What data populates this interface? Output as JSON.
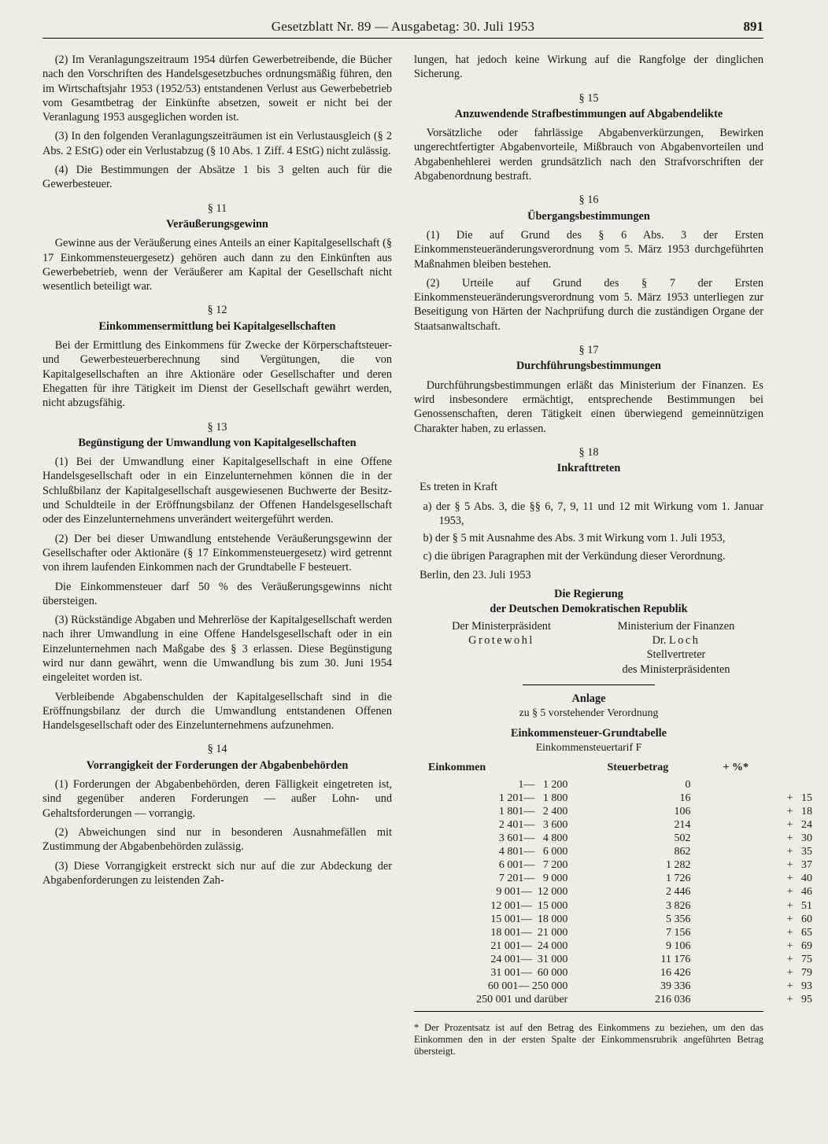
{
  "header": {
    "center": "Gesetzblatt Nr. 89 — Ausgabetag: 30. Juli 1953",
    "page": "891"
  },
  "left": {
    "p1": "(2) Im Veranlagungszeitraum 1954 dürfen Gewerbetreibende, die Bücher nach den Vorschriften des Handelsgesetzbuches ordnungsmäßig führen, den im Wirtschaftsjahr 1953 (1952/53) entstandenen Verlust aus Gewerbebetrieb vom Gesamtbetrag der Einkünfte absetzen, soweit er nicht bei der Veranlagung 1953 ausgeglichen worden ist.",
    "p2": "(3) In den folgenden Veranlagungszeiträumen ist ein Verlustausgleich (§ 2 Abs. 2 EStG) oder ein Verlustabzug (§ 10 Abs. 1 Ziff. 4 EStG) nicht zulässig.",
    "p3": "(4) Die Bestimmungen der Absätze 1 bis 3 gelten auch für die Gewerbesteuer.",
    "s11_num": "§ 11",
    "s11_title": "Veräußerungsgewinn",
    "s11_body": "Gewinne aus der Veräußerung eines Anteils an einer Kapitalgesellschaft (§ 17 Einkommensteuergesetz) gehören auch dann zu den Einkünften aus Gewerbebetrieb, wenn der Veräußerer am Kapital der Gesellschaft nicht wesentlich beteiligt war.",
    "s12_num": "§ 12",
    "s12_title": "Einkommensermittlung bei Kapitalgesellschaften",
    "s12_body": "Bei der Ermittlung des Einkommens für Zwecke der Körperschaftsteuer- und Gewerbesteuerberechnung sind Vergütungen, die von Kapitalgesellschaften an ihre Aktionäre oder Gesellschafter und deren Ehegatten für ihre Tätigkeit im Dienst der Gesellschaft gewährt werden, nicht abzugsfähig.",
    "s13_num": "§ 13",
    "s13_title": "Begünstigung der Umwandlung von Kapitalgesellschaften",
    "s13_p1": "(1) Bei der Umwandlung einer Kapitalgesellschaft in eine Offene Handelsgesellschaft oder in ein Einzelunternehmen können die in der Schlußbilanz der Kapitalgesellschaft ausgewiesenen Buchwerte der Besitz- und Schuldteile in der Eröffnungsbilanz der Offenen Handelsgesellschaft oder des Einzelunternehmens unverändert weitergeführt werden.",
    "s13_p2": "(2) Der bei dieser Umwandlung entstehende Veräußerungsgewinn der Gesellschafter oder Aktionäre (§ 17 Einkommensteuergesetz) wird getrennt von ihrem laufenden Einkommen nach der Grundtabelle F besteuert.",
    "s13_p3": "Die Einkommensteuer darf 50 % des Veräußerungsgewinns nicht übersteigen.",
    "s13_p4": "(3) Rückständige Abgaben und Mehrerlöse der Kapitalgesellschaft werden nach ihrer Umwandlung in eine Offene Handelsgesellschaft oder in ein Einzelunternehmen nach Maßgabe des § 3 erlassen. Diese Begünstigung wird nur dann gewährt, wenn die Umwandlung bis zum 30. Juni 1954 eingeleitet worden ist.",
    "s13_p5": "Verbleibende Abgabenschulden der Kapitalgesellschaft sind in die Eröffnungsbilanz der durch die Umwandlung entstandenen Offenen Handelsgesellschaft oder des Einzelunternehmens aufzunehmen.",
    "s14_num": "§ 14",
    "s14_title": "Vorrangigkeit der Forderungen der Abgabenbehörden",
    "s14_p1": "(1) Forderungen der Abgabenbehörden, deren Fälligkeit eingetreten ist, sind gegenüber anderen Forderungen — außer Lohn- und Gehaltsforderungen — vorrangig.",
    "s14_p2": "(2) Abweichungen sind nur in besonderen Ausnahmefällen mit Zustimmung der Abgabenbehörden zulässig.",
    "s14_p3": "(3) Diese Vorrangigkeit erstreckt sich nur auf die zur Abdeckung der Abgabenforderungen zu leistenden Zah-"
  },
  "right": {
    "cont": "lungen, hat jedoch keine Wirkung auf die Rangfolge der dinglichen Sicherung.",
    "s15_num": "§ 15",
    "s15_title": "Anzuwendende Strafbestimmungen auf Abgabendelikte",
    "s15_body": "Vorsätzliche oder fahrlässige Abgabenverkürzungen, Bewirken ungerechtfertigter Abgabenvorteile, Mißbrauch von Abgabenvorteilen und Abgabenhehlerei werden grundsätzlich nach den Strafvorschriften der Abgabenordnung bestraft.",
    "s16_num": "§ 16",
    "s16_title": "Übergangsbestimmungen",
    "s16_p1": "(1) Die auf Grund des § 6 Abs. 3 der Ersten Einkommensteueränderungsverordnung vom 5. März 1953 durchgeführten Maßnahmen bleiben bestehen.",
    "s16_p2": "(2) Urteile auf Grund des § 7 der Ersten Einkommensteueränderungsverordnung vom 5. März 1953 unterliegen zur Beseitigung von Härten der Nachprüfung durch die zuständigen Organe der Staatsanwaltschaft.",
    "s17_num": "§ 17",
    "s17_title": "Durchführungsbestimmungen",
    "s17_body": "Durchführungsbestimmungen erläßt das Ministerium der Finanzen. Es wird insbesondere ermächtigt, entsprechende Bestimmungen bei Genossenschaften, deren Tätigkeit einen überwiegend gemeinnützigen Charakter haben, zu erlassen.",
    "s18_num": "§ 18",
    "s18_title": "Inkrafttreten",
    "s18_intro": "Es treten in Kraft",
    "s18_a": "a) der § 5 Abs. 3, die §§ 6, 7, 9, 11 und 12 mit Wirkung vom 1. Januar 1953,",
    "s18_b": "b) der § 5 mit Ausnahme des Abs. 3 mit Wirkung vom 1. Juli 1953,",
    "s18_c": "c) die übrigen Paragraphen mit der Verkündung dieser Verordnung.",
    "date": "Berlin, den 23. Juli 1953",
    "gov1": "Die Regierung",
    "gov2": "der Deutschen Demokratischen Republik",
    "sig_l1": "Der Ministerpräsident",
    "sig_l2": "Grotewohl",
    "sig_r1": "Ministerium der Finanzen",
    "sig_r2": "Dr. Loch",
    "sig_r3": "Stellvertreter",
    "sig_r4": "des Ministerpräsidenten",
    "anlage": "Anlage",
    "anlage_sub": "zu § 5 vorstehender Verordnung",
    "tbl_title": "Einkommensteuer-Grundtabelle",
    "tbl_sub": "Einkommensteuertarif F",
    "tbl_h1": "Einkommen",
    "tbl_h2": "Steuerbetrag",
    "tbl_h3": "+ %*",
    "rows": [
      {
        "c1": "      1—   1 200",
        "c2": "0",
        "c3": ""
      },
      {
        "c1": "  1 201—   1 800",
        "c2": "16",
        "c3": "+   15"
      },
      {
        "c1": "  1 801—   2 400",
        "c2": "106",
        "c3": "+   18"
      },
      {
        "c1": "  2 401—   3 600",
        "c2": "214",
        "c3": "+   24"
      },
      {
        "c1": "  3 601—   4 800",
        "c2": "502",
        "c3": "+   30"
      },
      {
        "c1": "  4 801—   6 000",
        "c2": "862",
        "c3": "+   35"
      },
      {
        "c1": "  6 001—   7 200",
        "c2": "1 282",
        "c3": "+   37"
      },
      {
        "c1": "  7 201—   9 000",
        "c2": "1 726",
        "c3": "+   40"
      },
      {
        "c1": "  9 001—  12 000",
        "c2": "2 446",
        "c3": "+   46"
      },
      {
        "c1": " 12 001—  15 000",
        "c2": "3 826",
        "c3": "+   51"
      },
      {
        "c1": " 15 001—  18 000",
        "c2": "5 356",
        "c3": "+   60"
      },
      {
        "c1": " 18 001—  21 000",
        "c2": "7 156",
        "c3": "+   65"
      },
      {
        "c1": " 21 001—  24 000",
        "c2": "9 106",
        "c3": "+   69"
      },
      {
        "c1": " 24 001—  31 000",
        "c2": "11 176",
        "c3": "+   75"
      },
      {
        "c1": " 31 001—  60 000",
        "c2": "16 426",
        "c3": "+   79"
      },
      {
        "c1": " 60 001— 250 000",
        "c2": "39 336",
        "c3": "+   93"
      },
      {
        "c1": "250 001 und darüber",
        "c2": "216 036",
        "c3": "+   95"
      }
    ],
    "footnote": "* Der Prozentsatz ist auf den Betrag des Einkommens zu beziehen, um den das Einkommen den in der ersten Spalte der Einkommensrubrik angeführten Betrag übersteigt."
  }
}
